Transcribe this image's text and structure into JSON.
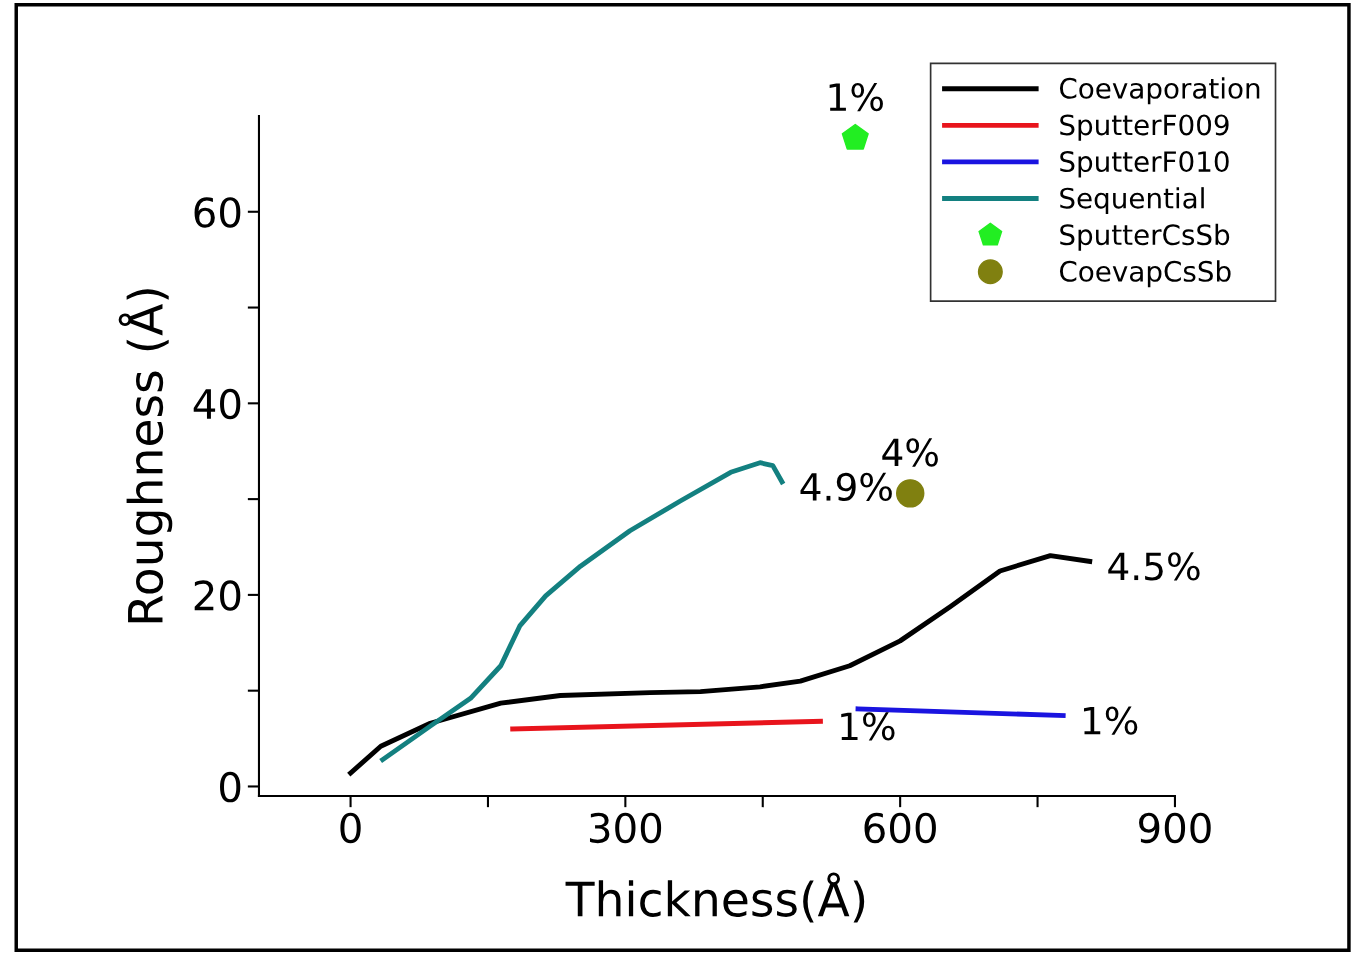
{
  "chart_data": {
    "type": "line",
    "xlabel": "Thickness(Å)",
    "ylabel": "Roughness (Å)",
    "xlim": [
      -100,
      900
    ],
    "ylim": [
      -1,
      70
    ],
    "xticks": [
      0,
      {
        "value": 150,
        "label": null
      },
      300,
      {
        "value": 450,
        "label": null
      },
      600,
      {
        "value": 750,
        "label": null
      },
      900
    ],
    "yticks": [
      0,
      {
        "value": 10,
        "label": null
      },
      20,
      {
        "value": 30,
        "label": null
      },
      40,
      {
        "value": 50,
        "label": null
      },
      60
    ],
    "grid": false,
    "legend": "top right",
    "line_style": "solid",
    "series": [
      {
        "name": "Coevaporation",
        "color": "#000000",
        "x": [
          0,
          33,
          87,
          164,
          229,
          327,
          382,
          447,
          491,
          545,
          600,
          655,
          709,
          764,
          807
        ],
        "values": [
          1.4,
          4.2,
          6.6,
          8.7,
          9.5,
          9.8,
          9.9,
          10.4,
          11.0,
          12.6,
          15.2,
          18.8,
          22.5,
          24.1,
          23.5
        ]
      },
      {
        "name": "SputterF009",
        "color": "#e8141c",
        "x": [
          177,
          513
        ],
        "values": [
          6.0,
          6.8
        ]
      },
      {
        "name": "SputterF010",
        "color": "#1a14e0",
        "x": [
          554,
          778
        ],
        "values": [
          8.1,
          7.4
        ]
      },
      {
        "name": "Sequential",
        "color": "#138080",
        "x": [
          35,
          87,
          131,
          164,
          185,
          213,
          251,
          305,
          360,
          415,
          447,
          461,
          471
        ],
        "values": [
          2.8,
          6.3,
          9.2,
          12.6,
          16.8,
          19.9,
          23.0,
          26.7,
          29.8,
          32.8,
          33.8,
          33.5,
          31.8
        ]
      },
      {
        "name": "SputterCsSb",
        "color": "#22ee22",
        "type": "scatter",
        "x": [
          551
        ],
        "values": [
          67.7
        ]
      },
      {
        "name": "CoevapCsSb",
        "color": "#808010",
        "type": "scatter",
        "marker": "circle",
        "x": [
          611
        ],
        "values": [
          30.6
        ]
      }
    ],
    "annotations": [
      {
        "text": "1%",
        "x": 551,
        "y": 67.7
      },
      {
        "text": "4.9%",
        "x": 471,
        "y": 31.8
      },
      {
        "text": "4%",
        "x": 611,
        "y": 30.6
      },
      {
        "text": "4.5%",
        "x": 807,
        "y": 23.5
      },
      {
        "text": "1%",
        "x": 513,
        "y": 6.8
      },
      {
        "text": "1%",
        "x": 778,
        "y": 7.4
      }
    ]
  }
}
